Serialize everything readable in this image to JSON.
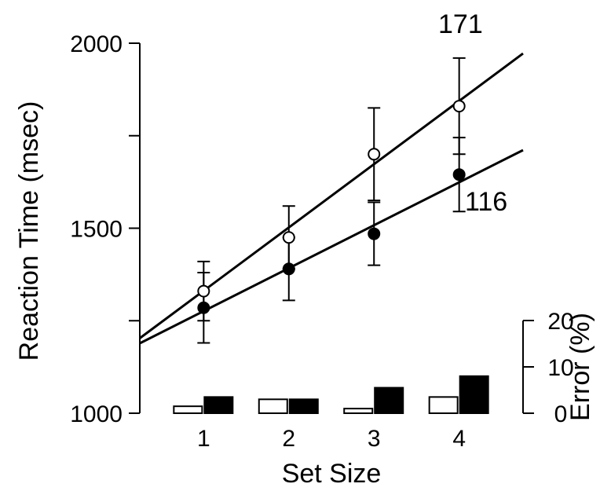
{
  "chart_data": {
    "type": "line",
    "xlabel": "Set Size",
    "ylabel": "Reaction Time (msec)",
    "x": [
      1,
      2,
      3,
      4
    ],
    "x_ticks": [
      "1",
      "2",
      "3",
      "4"
    ],
    "xlim": [
      0.25,
      4.75
    ],
    "ylim": [
      1000,
      2000
    ],
    "y_ticks_labeled": [
      "1000",
      "1500",
      "2000"
    ],
    "y_ticks": [
      1000,
      1250,
      1500,
      1750,
      2000
    ],
    "grid": false,
    "series": [
      {
        "marker": "open-circle",
        "values": [
          1330,
          1475,
          1700,
          1830
        ],
        "error": [
          80,
          85,
          125,
          130
        ],
        "fit": {
          "intercept": 1160,
          "slope": 171
        },
        "slope_label": "171"
      },
      {
        "marker": "filled-circle",
        "values": [
          1285,
          1390,
          1485,
          1645
        ],
        "error": [
          95,
          85,
          85,
          100
        ],
        "fit": {
          "intercept": 1160,
          "slope": 116
        },
        "slope_label": "116"
      }
    ],
    "error_panel": {
      "type": "bar",
      "ylabel": "Error (%)",
      "ylim": [
        0,
        20
      ],
      "y_ticks": [
        "0",
        "10",
        "20"
      ],
      "series": [
        {
          "fill": "open",
          "values": [
            1.5,
            3,
            1,
            3.5
          ]
        },
        {
          "fill": "filled",
          "values": [
            3.5,
            3,
            5.5,
            8
          ]
        }
      ]
    }
  }
}
